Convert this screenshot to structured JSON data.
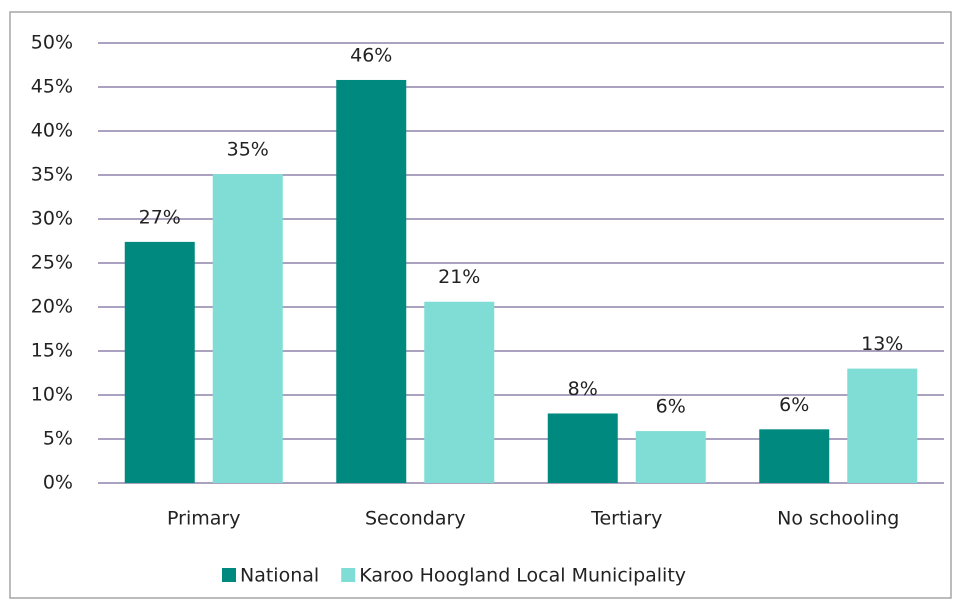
{
  "chart_data": {
    "type": "bar",
    "categories": [
      "Primary",
      "Secondary",
      "Tertiary",
      "No schooling"
    ],
    "series": [
      {
        "name": "National",
        "color": "#00897f",
        "values": [
          27.4,
          45.8,
          7.9,
          6.1
        ],
        "value_labels": [
          "27%",
          "46%",
          "8%",
          "6%"
        ]
      },
      {
        "name": "Karoo Hoogland Local Municipality",
        "color": "#80ddd5",
        "values": [
          35.1,
          20.6,
          5.9,
          13.0
        ],
        "value_labels": [
          "35%",
          "21%",
          "6%",
          "13%"
        ]
      }
    ],
    "ylim": [
      0,
      50
    ],
    "yticks": [
      {
        "value": 0,
        "label": "0%"
      },
      {
        "value": 5,
        "label": "5%"
      },
      {
        "value": 10,
        "label": "10%"
      },
      {
        "value": 15,
        "label": "15%"
      },
      {
        "value": 20,
        "label": "20%"
      },
      {
        "value": 25,
        "label": "25%"
      },
      {
        "value": 30,
        "label": "30%"
      },
      {
        "value": 35,
        "label": "35%"
      },
      {
        "value": 40,
        "label": "40%"
      },
      {
        "value": 45,
        "label": "45%"
      },
      {
        "value": 50,
        "label": "50%"
      }
    ],
    "grid": true,
    "legend": "bottom"
  }
}
